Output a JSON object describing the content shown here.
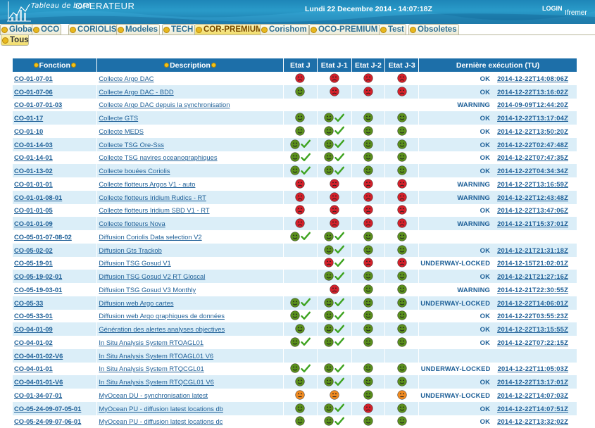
{
  "header": {
    "title_italic": "Tableau de bord",
    "title_main": "OPERATEUR",
    "datetime": "Lundi 22 Decembre 2014 - 14:07:18Z",
    "login_label": "LOGIN",
    "brand": "Ifremer"
  },
  "tabs": [
    {
      "label": "Global",
      "active": false
    },
    {
      "label": "OCO",
      "active": false
    },
    {
      "label": "CORIOLIS",
      "active": false
    },
    {
      "label": "Modeles",
      "active": false
    },
    {
      "label": "TECH",
      "active": false
    },
    {
      "label": "COR-PREMIUM",
      "active": true
    },
    {
      "label": "Corishom",
      "active": false
    },
    {
      "label": "OCO-PREMIUM",
      "active": false
    },
    {
      "label": "Test",
      "active": false
    },
    {
      "label": "Obsoletes",
      "active": false
    }
  ],
  "subtab": {
    "label": "Tous"
  },
  "table": {
    "headers": {
      "fonction": "Fonction",
      "description": "Description",
      "etat_j": "Etat J",
      "etat_j1": "Etat J-1",
      "etat_j2": "Etat J-2",
      "etat_j3": "Etat J-3",
      "last_run": "Dernière exécution (TU)"
    },
    "colors": {
      "green": "#5a8f1c",
      "red": "#d4202a",
      "orange": "#f08a20",
      "check": "#3ea320",
      "header": "#1d6fa9",
      "row_alt": "#dbeef8"
    },
    "rows": [
      {
        "fonction": "CO-01-07-01",
        "description": "Collecte Argo DAC",
        "j": "red",
        "j1": "red",
        "j2": "red",
        "j3": "red",
        "c": [
          false,
          false,
          false,
          false
        ],
        "status": "OK",
        "date": "2014-12-22T14:08:06Z"
      },
      {
        "fonction": "CO-01-07-06",
        "description": "Collecte Argo DAC - BDD",
        "j": "green",
        "j1": "red",
        "j2": "red",
        "j3": "red",
        "c": [
          false,
          false,
          false,
          false
        ],
        "status": "OK",
        "date": "2014-12-22T13:16:02Z"
      },
      {
        "fonction": "CO-01-07-01-03",
        "description": "Collecte Argo DAC depuis la synchronisation",
        "j": "",
        "j1": "",
        "j2": "",
        "j3": "",
        "c": [
          false,
          false,
          false,
          false
        ],
        "status": "WARNING",
        "date": "2014-09-09T12:44:20Z"
      },
      {
        "fonction": "CO-01-17",
        "description": "Collecte GTS",
        "j": "green",
        "j1": "green",
        "j2": "green",
        "j3": "green",
        "c": [
          false,
          true,
          false,
          false
        ],
        "status": "OK",
        "date": "2014-12-22T13:17:04Z"
      },
      {
        "fonction": "CO-01-10",
        "description": "Collecte MEDS",
        "j": "green",
        "j1": "green",
        "j2": "green",
        "j3": "green",
        "c": [
          false,
          true,
          false,
          false
        ],
        "status": "OK",
        "date": "2014-12-22T13:50:20Z"
      },
      {
        "fonction": "CO-01-14-03",
        "description": "Collecte TSG Ore-Sss",
        "j": "green",
        "j1": "green",
        "j2": "green",
        "j3": "green",
        "c": [
          true,
          true,
          false,
          false
        ],
        "status": "OK",
        "date": "2014-12-22T02:47:48Z"
      },
      {
        "fonction": "CO-01-14-01",
        "description": "Collecte TSG navires oceanographiques",
        "j": "green",
        "j1": "green",
        "j2": "green",
        "j3": "green",
        "c": [
          true,
          true,
          false,
          false
        ],
        "status": "OK",
        "date": "2014-12-22T07:47:35Z"
      },
      {
        "fonction": "CO-01-13-02",
        "description": "Collecte bouées Coriolis",
        "j": "green",
        "j1": "green",
        "j2": "green",
        "j3": "green",
        "c": [
          true,
          true,
          false,
          false
        ],
        "status": "OK",
        "date": "2014-12-22T04:34:34Z"
      },
      {
        "fonction": "CO-01-01-01",
        "description": "Collecte flotteurs Argos V1 - auto",
        "j": "red",
        "j1": "red",
        "j2": "red",
        "j3": "red",
        "c": [
          false,
          false,
          false,
          false
        ],
        "status": "WARNING",
        "date": "2014-12-22T13:16:59Z"
      },
      {
        "fonction": "CO-01-01-08-01",
        "description": "Collecte flotteurs Iridium Rudics - RT",
        "j": "red",
        "j1": "red",
        "j2": "red",
        "j3": "red",
        "c": [
          false,
          false,
          false,
          false
        ],
        "status": "WARNING",
        "date": "2014-12-22T12:43:48Z"
      },
      {
        "fonction": "CO-01-01-05",
        "description": "Collecte flotteurs Iridium SBD V1 - RT",
        "j": "red",
        "j1": "red",
        "j2": "red",
        "j3": "red",
        "c": [
          false,
          false,
          false,
          false
        ],
        "status": "OK",
        "date": "2014-12-22T13:47:06Z"
      },
      {
        "fonction": "CO-01-01-09",
        "description": "Collecte flotteurs Nova",
        "j": "red",
        "j1": "red",
        "j2": "red",
        "j3": "red",
        "c": [
          false,
          false,
          false,
          false
        ],
        "status": "WARNING",
        "date": "2014-12-21T15:37:01Z"
      },
      {
        "fonction": "CO-05-01-07-08-02",
        "description": "Diffusion Coriolis Data selection V2",
        "j": "green",
        "j1": "green",
        "j2": "green",
        "j3": "green",
        "c": [
          true,
          true,
          false,
          false
        ],
        "status": "",
        "date": ""
      },
      {
        "fonction": "CO-05-02-02",
        "description": "Diffusion Gts Trackob",
        "j": "",
        "j1": "green",
        "j2": "green",
        "j3": "green",
        "c": [
          false,
          true,
          false,
          false
        ],
        "status": "OK",
        "date": "2014-12-21T21:31:18Z"
      },
      {
        "fonction": "CO-05-19-01",
        "description": "Diffusion TSG Gosud V1",
        "j": "",
        "j1": "red",
        "j2": "red",
        "j3": "red",
        "c": [
          false,
          true,
          false,
          false
        ],
        "status": "UNDERWAY-LOCKED",
        "date": "2014-12-15T21:02:01Z"
      },
      {
        "fonction": "CO-05-19-02-01",
        "description": "Diffusion TSG Gosud V2 RT Gloscal",
        "j": "",
        "j1": "green",
        "j2": "green",
        "j3": "green",
        "c": [
          false,
          true,
          false,
          false
        ],
        "status": "OK",
        "date": "2014-12-21T21:27:16Z"
      },
      {
        "fonction": "CO-05-19-03-01",
        "description": "Diffusion TSG Gosud V3 Monthly",
        "j": "",
        "j1": "red",
        "j2": "green",
        "j3": "green",
        "c": [
          false,
          false,
          false,
          false
        ],
        "status": "WARNING",
        "date": "2014-12-21T22:30:55Z"
      },
      {
        "fonction": "CO-05-33",
        "description": "Diffusion web Argo cartes",
        "j": "green",
        "j1": "green",
        "j2": "green",
        "j3": "green",
        "c": [
          true,
          true,
          false,
          false
        ],
        "status": "UNDERWAY-LOCKED",
        "date": "2014-12-22T14:06:01Z"
      },
      {
        "fonction": "CO-05-33-01",
        "description": "Diffusion web Argo graphiques de données",
        "j": "green",
        "j1": "green",
        "j2": "green",
        "j3": "green",
        "c": [
          true,
          true,
          false,
          false
        ],
        "status": "OK",
        "date": "2014-12-22T03:55:23Z"
      },
      {
        "fonction": "CO-04-01-09",
        "description": "Génération des alertes analyses objectives",
        "j": "green",
        "j1": "green",
        "j2": "green",
        "j3": "green",
        "c": [
          false,
          true,
          false,
          false
        ],
        "status": "OK",
        "date": "2014-12-22T13:15:55Z"
      },
      {
        "fonction": "CO-04-01-02",
        "description": "In Situ Analysis System RTOAGL01",
        "j": "green",
        "j1": "green",
        "j2": "green",
        "j3": "green",
        "c": [
          true,
          true,
          false,
          false
        ],
        "status": "OK",
        "date": "2014-12-22T07:22:15Z"
      },
      {
        "fonction": "CO-04-01-02-V6",
        "description": "In Situ Analysis System RTOAGL01 V6",
        "j": "",
        "j1": "",
        "j2": "",
        "j3": "",
        "c": [
          false,
          false,
          false,
          false
        ],
        "status": "",
        "date": ""
      },
      {
        "fonction": "CO-04-01-01",
        "description": "In Situ Analysis System RTQCGL01",
        "j": "green",
        "j1": "green",
        "j2": "green",
        "j3": "green",
        "c": [
          true,
          true,
          false,
          false
        ],
        "status": "UNDERWAY-LOCKED",
        "date": "2014-12-22T11:05:03Z"
      },
      {
        "fonction": "CO-04-01-01-V6",
        "description": "In Situ Analysis System RTQCGL01 V6",
        "j": "green",
        "j1": "green",
        "j2": "green",
        "j3": "green",
        "c": [
          false,
          true,
          false,
          false
        ],
        "status": "OK",
        "date": "2014-12-22T13:17:01Z"
      },
      {
        "fonction": "CO-01-34-07-01",
        "description": "MyOcean DU - synchronisation latest",
        "j": "orange",
        "j1": "orange",
        "j2": "green",
        "j3": "orange",
        "c": [
          false,
          false,
          false,
          false
        ],
        "status": "UNDERWAY-LOCKED",
        "date": "2014-12-22T14:07:03Z"
      },
      {
        "fonction": "CO-05-24-09-07-05-01",
        "description": "MyOcean PU - diffusion latest locations db",
        "j": "green",
        "j1": "green",
        "j2": "red",
        "j3": "green",
        "c": [
          false,
          true,
          false,
          false
        ],
        "status": "OK",
        "date": "2014-12-22T14:07:51Z"
      },
      {
        "fonction": "CO-05-24-09-07-06-01",
        "description": "MyOcean PU - diffusion latest locations dc",
        "j": "green",
        "j1": "green",
        "j2": "green",
        "j3": "green",
        "c": [
          false,
          true,
          false,
          false
        ],
        "status": "OK",
        "date": "2014-12-22T13:32:02Z"
      }
    ]
  }
}
